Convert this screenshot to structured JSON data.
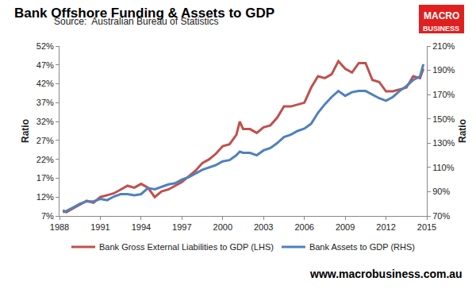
{
  "chart_data": {
    "type": "line",
    "title": "Bank Offshore Funding & Assets to GDP",
    "subtitle": "Source:  Australian Bureau of Statistics",
    "ylabel": "Ratio",
    "y2label": "Ratio",
    "annotations": [
      "MACRO",
      "BUSINESS",
      "www.macrobusiness.com.au"
    ],
    "x": [
      1988.25,
      1988.5,
      1989,
      1989.5,
      1990,
      1990.5,
      1991,
      1991.5,
      1992,
      1992.5,
      1993,
      1993.5,
      1994,
      1994.5,
      1995,
      1995.5,
      1996,
      1996.5,
      1997,
      1997.5,
      1998,
      1998.5,
      1999,
      1999.5,
      2000,
      2000.5,
      2001,
      2001.25,
      2001.5,
      2002,
      2002.5,
      2003,
      2003.5,
      2004,
      2004.5,
      2005,
      2005.5,
      2006,
      2006.5,
      2007,
      2007.5,
      2008,
      2008.5,
      2009,
      2009.5,
      2010,
      2010.5,
      2011,
      2011.5,
      2012,
      2012.5,
      2013,
      2013.5,
      2014,
      2014.5,
      2014.75
    ],
    "series": [
      {
        "name": "Bank Gross External Liabilities to GDP (LHS)",
        "color": "#c0504d",
        "axis": "y",
        "values": [
          8.5,
          8,
          9,
          10,
          11,
          10.5,
          12,
          12.5,
          13,
          14,
          15,
          14.5,
          15.5,
          14.5,
          12,
          13.5,
          14,
          15,
          16,
          17.5,
          19,
          21,
          22,
          23.5,
          25.5,
          26,
          28.5,
          32,
          30,
          30,
          29,
          30.5,
          31,
          33,
          36,
          36,
          36.5,
          37,
          41,
          44,
          43.5,
          44.5,
          48,
          46,
          45,
          47.5,
          47.5,
          43,
          42.5,
          40,
          40,
          40.5,
          41,
          44,
          43.5,
          46
        ]
      },
      {
        "name": "Bank Assets to GDP (RHS)",
        "color": "#4f81bd",
        "axis": "y2",
        "values": [
          73,
          74,
          77,
          80,
          82,
          82,
          84,
          83,
          86,
          88,
          88,
          87,
          88,
          93,
          92,
          94,
          96,
          97,
          100,
          102,
          105,
          108,
          110,
          112,
          115,
          116,
          120,
          123,
          122,
          122,
          120,
          124,
          126,
          130,
          135,
          137,
          140,
          142,
          146,
          155,
          162,
          168,
          173,
          169,
          172,
          173,
          173,
          170,
          167,
          165,
          168,
          173,
          177,
          182,
          185,
          195
        ]
      }
    ],
    "xlim": [
      1988,
      2015
    ],
    "xticks": [
      1988,
      1991,
      1994,
      1997,
      2000,
      2003,
      2006,
      2009,
      2012,
      2015
    ],
    "ylim": [
      7,
      52
    ],
    "yticks": [
      {
        "value": 7,
        "label": "7%"
      },
      {
        "value": 12,
        "label": "12%"
      },
      {
        "value": 17,
        "label": "17%"
      },
      {
        "value": 22,
        "label": "22%"
      },
      {
        "value": 27,
        "label": "27%"
      },
      {
        "value": 32,
        "label": "32%"
      },
      {
        "value": 37,
        "label": "37%"
      },
      {
        "value": 42,
        "label": "42%"
      },
      {
        "value": 47,
        "label": "47%"
      },
      {
        "value": 52,
        "label": "52%"
      }
    ],
    "y2lim": [
      70,
      210
    ],
    "y2ticks": [
      {
        "value": 70,
        "label": "70%"
      },
      {
        "value": 90,
        "label": "90%"
      },
      {
        "value": 110,
        "label": "110%"
      },
      {
        "value": 130,
        "label": "130%"
      },
      {
        "value": 150,
        "label": "150%"
      },
      {
        "value": 170,
        "label": "170%"
      },
      {
        "value": 190,
        "label": "190%"
      },
      {
        "value": 210,
        "label": "210%"
      }
    ],
    "grid": false,
    "legend": "bottom"
  }
}
